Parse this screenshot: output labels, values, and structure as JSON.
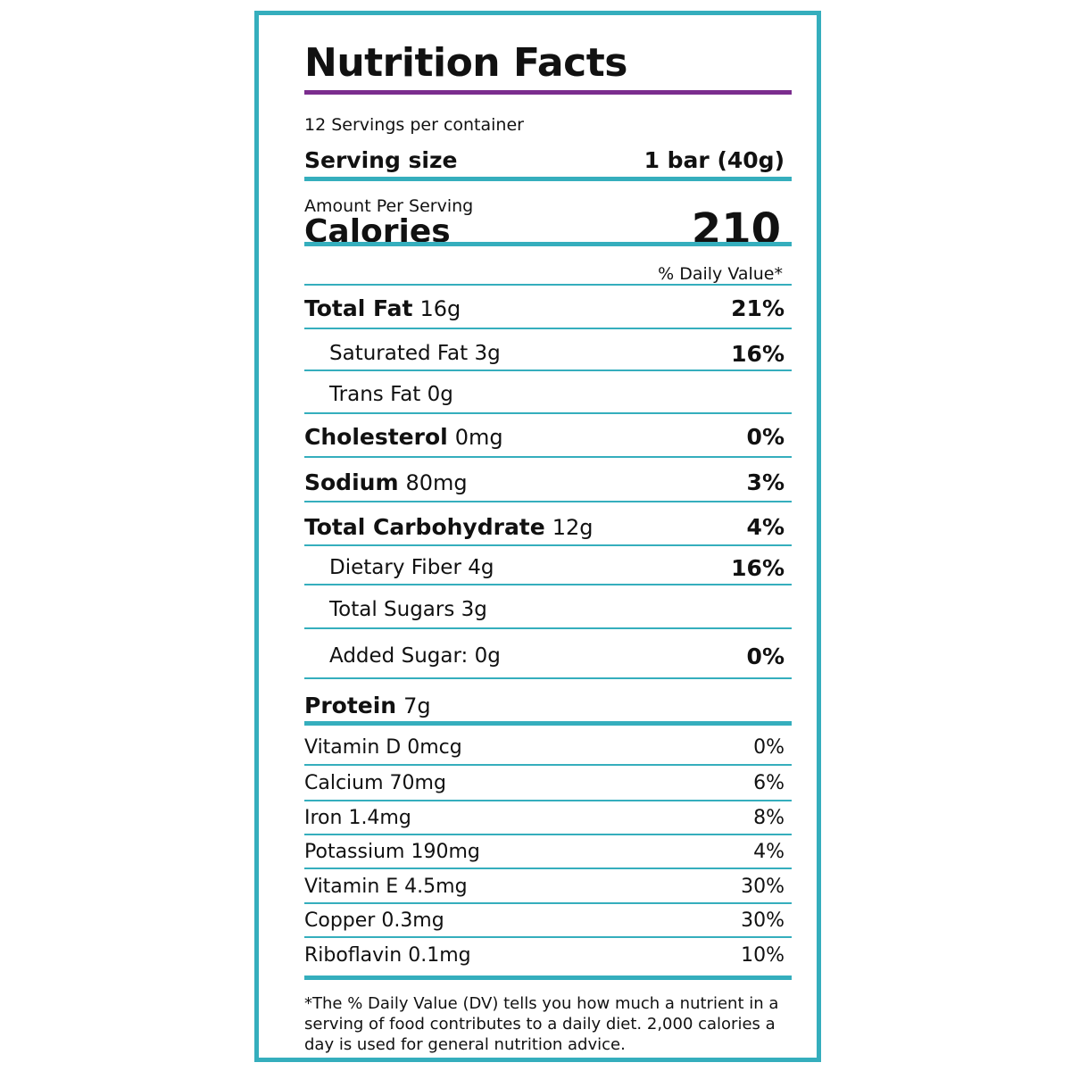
{
  "label": {
    "title": "Nutrition Facts",
    "servings_per_container": "12 Servings per container",
    "serving_size_label": "Serving size",
    "serving_size_value": "1 bar (40g)",
    "amount_per_serving": "Amount Per Serving",
    "calories_label": "Calories",
    "calories_value": "210",
    "daily_value_header": "% Daily Value*",
    "nutrients": [
      {
        "name": "Total Fat",
        "amount": "16g",
        "dv": "21%"
      },
      {
        "name": "Saturated Fat 3g",
        "amount": "",
        "dv": "16%"
      },
      {
        "name": "Trans Fat 0g",
        "amount": "",
        "dv": ""
      },
      {
        "name": "Cholesterol",
        "amount": "0mg",
        "dv": "0%"
      },
      {
        "name": "Sodium",
        "amount": "80mg",
        "dv": "3%"
      },
      {
        "name": "Total Carbohydrate",
        "amount": "12g",
        "dv": "4%"
      },
      {
        "name": "Dietary Fiber 4g",
        "amount": "",
        "dv": "16%"
      },
      {
        "name": "Total Sugars 3g",
        "amount": "",
        "dv": ""
      },
      {
        "name": "Added Sugar: 0g",
        "amount": "",
        "dv": "0%"
      },
      {
        "name": "Protein",
        "amount": "7g",
        "dv": ""
      }
    ],
    "vitamins": [
      {
        "name": "Vitamin D 0mcg",
        "dv": "0%"
      },
      {
        "name": "Calcium 70mg",
        "dv": "6%"
      },
      {
        "name": "Iron 1.4mg",
        "dv": "8%"
      },
      {
        "name": "Potassium 190mg",
        "dv": "4%"
      },
      {
        "name": "Vitamin E 4.5mg",
        "dv": "30%"
      },
      {
        "name": "Copper 0.3mg",
        "dv": "30%"
      },
      {
        "name": "Riboflavin 0.1mg",
        "dv": "10%"
      }
    ],
    "footnote": "*The % Daily Value (DV) tells you how much a nutrient in a serving of food contributes to a daily diet. 2,000 calories a day is used for general nutrition advice."
  },
  "colors": {
    "border": "#35aebd",
    "title_rule": "#7b2d8e",
    "text": "#111111"
  }
}
